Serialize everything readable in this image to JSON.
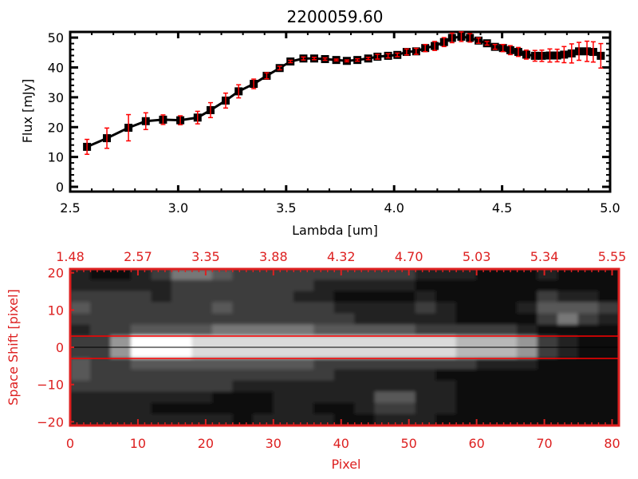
{
  "chart_data": [
    {
      "type": "line",
      "title": "2200059.60",
      "xlabel": "Lambda [um]",
      "ylabel": "Flux [mJy]",
      "xlim": [
        2.5,
        5.0
      ],
      "ylim": [
        -1.6,
        51.9
      ],
      "xticks": [
        "2.5",
        "3.0",
        "3.5",
        "4.0",
        "4.5",
        "5.0"
      ],
      "yticks": [
        "0",
        "10",
        "20",
        "30",
        "40",
        "50"
      ],
      "grid": false,
      "line_color": "#000000",
      "errorbar_color": "#ff0000",
      "marker": "square",
      "x": [
        2.578,
        2.67,
        2.77,
        2.85,
        2.93,
        3.01,
        3.09,
        3.15,
        3.22,
        3.28,
        3.35,
        3.41,
        3.47,
        3.52,
        3.58,
        3.63,
        3.68,
        3.732,
        3.781,
        3.83,
        3.88,
        3.923,
        3.972,
        4.015,
        4.058,
        4.102,
        4.144,
        4.188,
        4.231,
        4.268,
        4.311,
        4.351,
        4.391,
        4.43,
        4.467,
        4.504,
        4.538,
        4.575,
        4.612,
        4.652,
        4.684,
        4.721,
        4.755,
        4.787,
        4.822,
        4.856,
        4.893,
        4.922,
        4.957
      ],
      "y": [
        13.4,
        16.3,
        19.8,
        22.0,
        22.5,
        22.3,
        23.2,
        25.7,
        28.9,
        32.0,
        34.5,
        37.2,
        39.8,
        42.0,
        43.0,
        43.0,
        42.8,
        42.5,
        42.2,
        42.5,
        43.0,
        43.6,
        43.9,
        44.2,
        45.2,
        45.4,
        46.5,
        47.2,
        48.5,
        49.9,
        50.3,
        49.9,
        49.0,
        48.1,
        46.9,
        46.5,
        45.8,
        45.2,
        44.3,
        43.9,
        43.9,
        44.0,
        44.0,
        44.3,
        44.7,
        45.4,
        45.4,
        45.2,
        43.9
      ],
      "yerr": [
        2.5,
        3.4,
        4.4,
        2.8,
        1.6,
        1.5,
        2.1,
        2.5,
        2.5,
        2.2,
        1.6,
        1.0,
        0.6,
        0.4,
        0.5,
        0.4,
        0.4,
        0.3,
        0.3,
        0.4,
        0.4,
        0.8,
        0.7,
        0.6,
        1.0,
        1.0,
        1.2,
        1.5,
        1.5,
        1.6,
        1.6,
        1.4,
        0.9,
        0.6,
        0.8,
        1.2,
        1.5,
        1.5,
        1.5,
        1.8,
        1.9,
        2.2,
        2.1,
        2.7,
        3.2,
        3.0,
        3.4,
        3.4,
        4.1
      ]
    },
    {
      "type": "heatmap",
      "xlabel": "Pixel",
      "ylabel": "Space Shift [pixel]",
      "xlim": [
        0,
        81
      ],
      "ylim": [
        -21,
        21
      ],
      "xticks": [
        "0",
        "10",
        "20",
        "30",
        "40",
        "50",
        "60",
        "70",
        "80"
      ],
      "yticks": [
        "20",
        "10",
        "0",
        "-10",
        "-20"
      ],
      "top_xticks": [
        "1.48",
        "2.57",
        "3.35",
        "3.88",
        "4.32",
        "4.70",
        "5.03",
        "5.34",
        "5.55"
      ],
      "axis_color": "#dd2020",
      "colormap": "grayscale",
      "trace_line_y": 0,
      "aperture_lines_y": [
        3,
        -3
      ],
      "aperture_color": "#ff0000",
      "cell_size_pixels": 3,
      "intensity_max": 9,
      "intensity": [
        [
          2,
          1,
          1,
          2,
          3,
          5,
          5,
          4,
          3,
          3,
          3,
          3,
          3,
          3,
          3,
          3,
          3,
          2,
          2,
          2,
          1,
          1,
          1,
          2,
          1,
          1,
          1
        ],
        [
          2,
          2,
          2,
          2,
          2,
          3,
          3,
          3,
          3,
          3,
          3,
          3,
          2,
          2,
          2,
          2,
          2,
          1,
          1,
          1,
          1,
          1,
          1,
          1,
          1,
          1,
          1
        ],
        [
          3,
          3,
          3,
          3,
          2,
          3,
          3,
          3,
          3,
          3,
          3,
          2,
          2,
          1,
          1,
          1,
          1,
          2,
          1,
          1,
          1,
          1,
          1,
          3,
          2,
          2,
          1
        ],
        [
          4,
          3,
          3,
          3,
          3,
          3,
          3,
          4,
          3,
          3,
          3,
          3,
          3,
          2,
          2,
          2,
          2,
          3,
          2,
          1,
          1,
          1,
          2,
          4,
          4,
          4,
          3
        ],
        [
          3,
          3,
          3,
          3,
          3,
          3,
          3,
          3,
          3,
          3,
          3,
          3,
          3,
          3,
          2,
          2,
          2,
          2,
          2,
          1,
          1,
          1,
          1,
          3,
          5,
          3,
          2
        ],
        [
          2,
          3,
          3,
          4,
          4,
          4,
          4,
          5,
          5,
          5,
          5,
          5,
          4,
          4,
          4,
          4,
          4,
          3,
          3,
          3,
          3,
          3,
          2,
          1,
          1,
          1,
          1
        ],
        [
          3,
          3,
          6,
          9,
          9,
          9,
          8,
          8,
          8,
          8,
          8,
          8,
          8,
          8,
          8,
          8,
          8,
          8,
          8,
          7,
          7,
          7,
          6,
          3,
          2,
          1,
          1
        ],
        [
          3,
          3,
          6,
          9,
          9,
          9,
          8,
          8,
          8,
          8,
          8,
          8,
          8,
          8,
          8,
          8,
          8,
          8,
          8,
          7,
          7,
          7,
          6,
          3,
          2,
          1,
          1
        ],
        [
          4,
          3,
          3,
          4,
          4,
          4,
          4,
          4,
          4,
          4,
          4,
          4,
          3,
          3,
          3,
          3,
          3,
          3,
          3,
          3,
          2,
          2,
          2,
          1,
          1,
          1,
          1
        ],
        [
          4,
          3,
          3,
          3,
          3,
          3,
          3,
          3,
          3,
          3,
          3,
          3,
          3,
          2,
          2,
          2,
          2,
          2,
          1,
          1,
          1,
          1,
          1,
          1,
          1,
          1,
          1
        ],
        [
          3,
          3,
          3,
          3,
          3,
          3,
          3,
          3,
          2,
          2,
          2,
          2,
          2,
          2,
          2,
          2,
          2,
          2,
          2,
          1,
          1,
          1,
          1,
          1,
          1,
          1,
          1
        ],
        [
          2,
          2,
          2,
          2,
          2,
          2,
          2,
          1,
          1,
          1,
          2,
          2,
          2,
          2,
          2,
          4,
          4,
          2,
          2,
          1,
          1,
          1,
          1,
          1,
          1,
          1,
          1
        ],
        [
          2,
          2,
          2,
          2,
          1,
          1,
          1,
          1,
          1,
          1,
          2,
          2,
          1,
          1,
          2,
          3,
          3,
          2,
          2,
          1,
          1,
          1,
          1,
          1,
          1,
          1,
          1
        ],
        [
          2,
          2,
          2,
          2,
          2,
          2,
          2,
          2,
          1,
          2,
          2,
          2,
          2,
          1,
          1,
          2,
          2,
          2,
          1,
          1,
          1,
          1,
          1,
          1,
          1,
          1,
          1
        ]
      ]
    }
  ]
}
